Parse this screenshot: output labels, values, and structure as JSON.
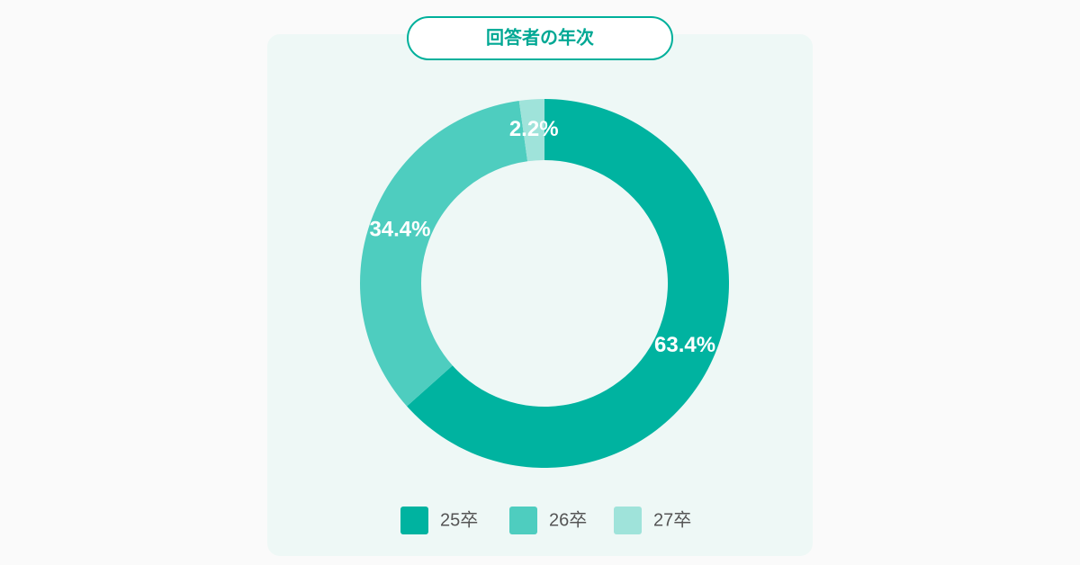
{
  "chart_data": {
    "type": "donut",
    "title": "回答者の年次",
    "categories": [
      "25卒",
      "26卒",
      "27卒"
    ],
    "values": [
      63.4,
      34.4,
      2.2
    ],
    "value_labels": [
      "63.4%",
      "34.4%",
      "2.2%"
    ],
    "colors": [
      "#00b3a0",
      "#4ecdbf",
      "#9fe3da"
    ],
    "legend": "bottom"
  }
}
